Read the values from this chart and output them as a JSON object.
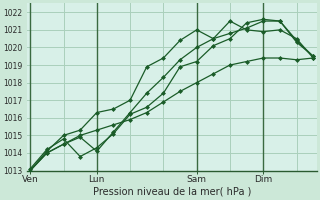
{
  "bg_color": "#cce8d8",
  "plot_bg_color": "#d8f0e8",
  "grid_color": "#aacfbb",
  "line_color": "#1a5c28",
  "vline_color": "#3a6a40",
  "title": "Pression niveau de la mer( hPa )",
  "ylim": [
    1013,
    1022.5
  ],
  "yticks": [
    1013,
    1014,
    1015,
    1016,
    1017,
    1018,
    1019,
    1020,
    1021,
    1022
  ],
  "xtick_labels": [
    "Ven",
    "Lun",
    "Sam",
    "Dim"
  ],
  "xtick_positions": [
    0,
    4,
    10,
    14
  ],
  "series": [
    [
      1013.0,
      1014.0,
      1014.5,
      1014.9,
      1014.1,
      1015.2,
      1016.3,
      1017.4,
      1018.3,
      1019.3,
      1020.0,
      1020.5,
      1020.8,
      1021.1,
      1021.5,
      1021.5,
      1020.3,
      1019.5
    ],
    [
      1013.1,
      1014.2,
      1014.8,
      1013.8,
      1014.3,
      1015.1,
      1016.2,
      1016.6,
      1017.4,
      1018.9,
      1019.2,
      1020.1,
      1020.5,
      1021.4,
      1021.6,
      1021.5,
      1020.4,
      1019.5
    ],
    [
      1013.0,
      1014.1,
      1015.0,
      1015.3,
      1016.3,
      1016.5,
      1017.0,
      1018.9,
      1019.4,
      1020.4,
      1021.0,
      1020.5,
      1021.5,
      1021.0,
      1020.9,
      1021.0,
      1020.5,
      1019.4
    ],
    [
      1013.0,
      1014.0,
      1014.5,
      1015.0,
      1015.3,
      1015.6,
      1015.9,
      1016.3,
      1016.9,
      1017.5,
      1018.0,
      1018.5,
      1019.0,
      1019.2,
      1019.4,
      1019.4,
      1019.3,
      1019.4
    ]
  ],
  "marker": "D",
  "markersize": 2.0,
  "linewidth": 0.9,
  "title_fontsize": 7,
  "tick_fontsize": 5.5,
  "xlabel_fontsize": 6.5
}
